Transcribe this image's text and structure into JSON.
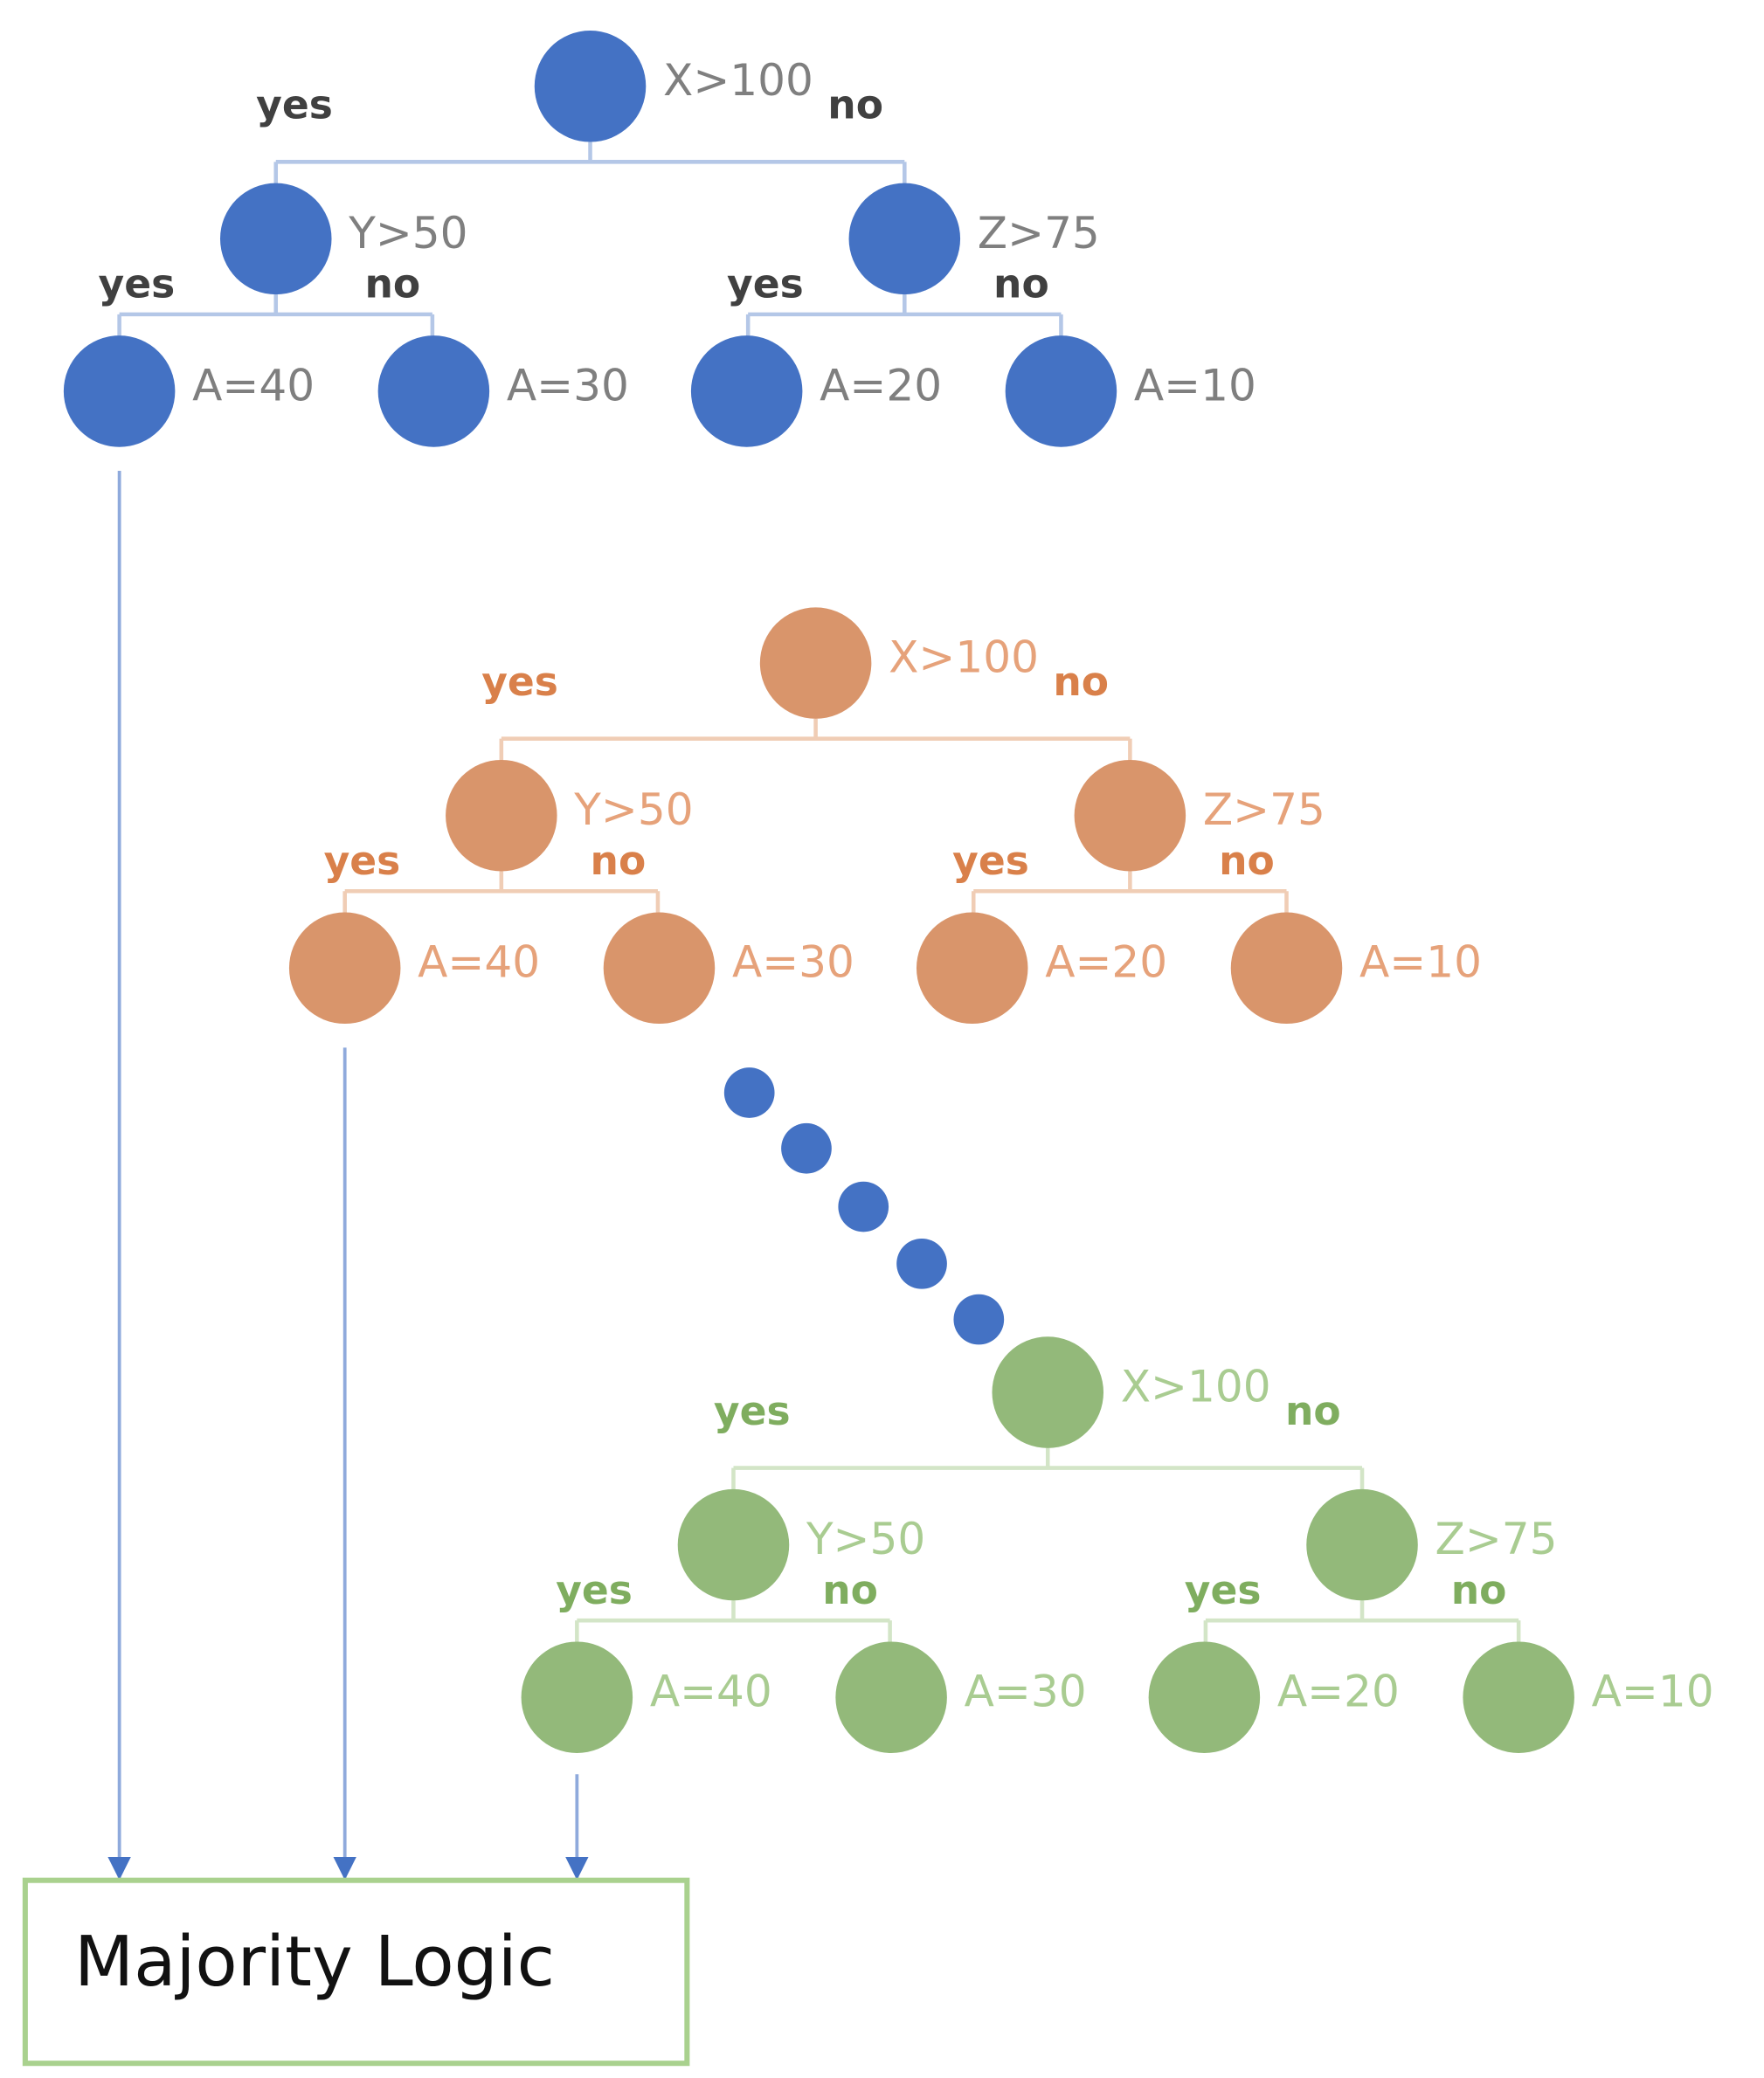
{
  "trees": [
    {
      "color": "#4472c4",
      "line_color": "#b4c7e7",
      "label_color": "#7f7f7f",
      "branch_color": "#404040",
      "root": {
        "label": "X>100",
        "yes": "yes",
        "no": "no"
      },
      "left": {
        "label": "Y>50",
        "yes": "yes",
        "no": "no"
      },
      "right": {
        "label": "Z>75",
        "yes": "yes",
        "no": "no"
      },
      "leaves": [
        "A=40",
        "A=30",
        "A=20",
        "A=10"
      ]
    },
    {
      "color": "#d9956b",
      "line_color": "#f0cdb5",
      "label_color": "#e6a27a",
      "branch_color": "#d9804a",
      "root": {
        "label": "X>100",
        "yes": "yes",
        "no": "no"
      },
      "left": {
        "label": "Y>50",
        "yes": "yes",
        "no": "no"
      },
      "right": {
        "label": "Z>75",
        "yes": "yes",
        "no": "no"
      },
      "leaves": [
        "A=40",
        "A=30",
        "A=20",
        "A=10"
      ]
    },
    {
      "color": "#93b97a",
      "line_color": "#d3e5c7",
      "label_color": "#a9cc91",
      "branch_color": "#7fad5f",
      "root": {
        "label": "X>100",
        "yes": "yes",
        "no": "no"
      },
      "left": {
        "label": "Y>50",
        "yes": "yes",
        "no": "no"
      },
      "right": {
        "label": "Z>75",
        "yes": "yes",
        "no": "no"
      },
      "leaves": [
        "A=40",
        "A=30",
        "A=20",
        "A=10"
      ]
    }
  ],
  "output": {
    "label": "Majority Logic"
  }
}
